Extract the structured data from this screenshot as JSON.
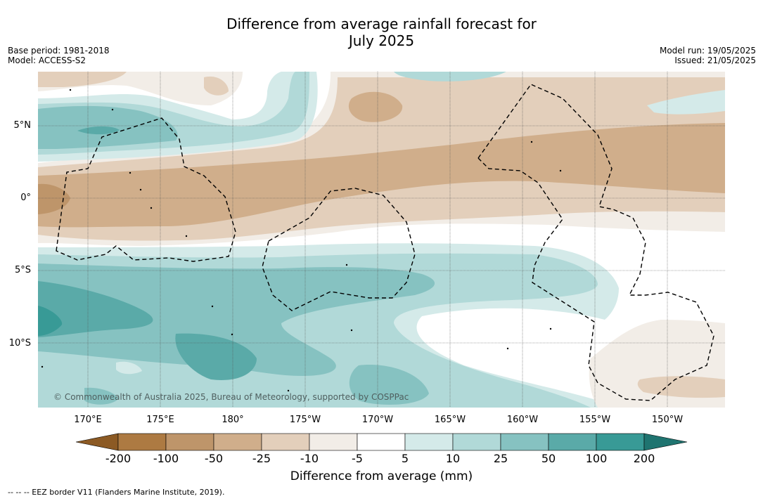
{
  "title": {
    "line1": "Difference from average rainfall forecast for",
    "line2": "July 2025"
  },
  "meta_left": {
    "base_period": "Base period: 1981-2018",
    "model": "Model: ACCESS-S2"
  },
  "meta_right": {
    "model_run": "Model run: 19/05/2025",
    "issued": "Issued: 21/05/2025"
  },
  "lat_labels": [
    "5°N",
    "0°",
    "5°S",
    "10°S"
  ],
  "lon_labels": [
    "170°E",
    "175°E",
    "180°",
    "175°W",
    "170°W",
    "165°W",
    "160°W",
    "155°W",
    "150°W"
  ],
  "colorbar": {
    "title": "Difference from average (mm)",
    "ticks": [
      "-200",
      "-100",
      "-50",
      "-25",
      "-10",
      "-5",
      "5",
      "10",
      "25",
      "50",
      "100",
      "200"
    ],
    "colors": {
      "below_min": "#8c5a24",
      "bins": [
        "#ad7a42",
        "#be956a",
        "#d0ae8b",
        "#e3cfbb",
        "#f2ede7",
        "#ffffff",
        "#d4eae9",
        "#b1d9d8",
        "#86c2c1",
        "#5aaaa8",
        "#389a96"
      ],
      "above_max": "#1f7470"
    }
  },
  "copyright": "© Commonwealth of Australia 2025, Bureau of Meteorology, supported by COSPPac",
  "footnote": "-- -- -- EEZ border V11 (Flanders Marine Institute, 2019)."
}
